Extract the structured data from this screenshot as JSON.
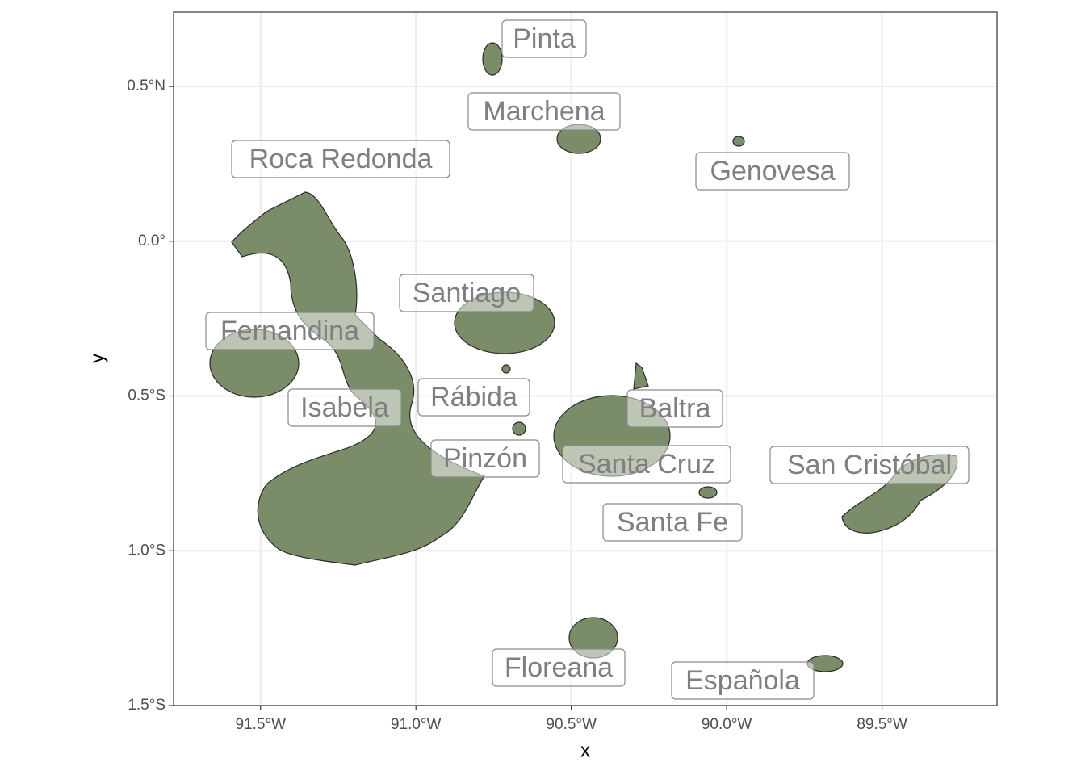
{
  "map": {
    "x_label": "x",
    "y_label": "y",
    "xlim": [
      -91.78,
      -89.13
    ],
    "ylim": [
      -1.5,
      0.74
    ],
    "xticks": [
      {
        "value": -91.5,
        "label": "91.5°W"
      },
      {
        "value": -91.0,
        "label": "91.0°W"
      },
      {
        "value": -90.5,
        "label": "90.5°W"
      },
      {
        "value": -90.0,
        "label": "90.0°W"
      },
      {
        "value": -89.5,
        "label": "89.5°W"
      }
    ],
    "yticks": [
      {
        "value": 0.5,
        "label": "0.5°N"
      },
      {
        "value": 0.0,
        "label": "0.0°"
      },
      {
        "value": -0.5,
        "label": "0.5°S"
      },
      {
        "value": -1.0,
        "label": "1.0°S"
      },
      {
        "value": -1.5,
        "label": "1.5°S"
      }
    ],
    "islands": [
      "Pinta",
      "Marchena",
      "Roca Redonda",
      "Genovesa",
      "Santiago",
      "Fernandina",
      "Isabela",
      "Rábida",
      "Baltra",
      "Pinzón",
      "Santa Cruz",
      "San Cristóbal",
      "Santa Fe",
      "Floreana",
      "Española"
    ]
  }
}
